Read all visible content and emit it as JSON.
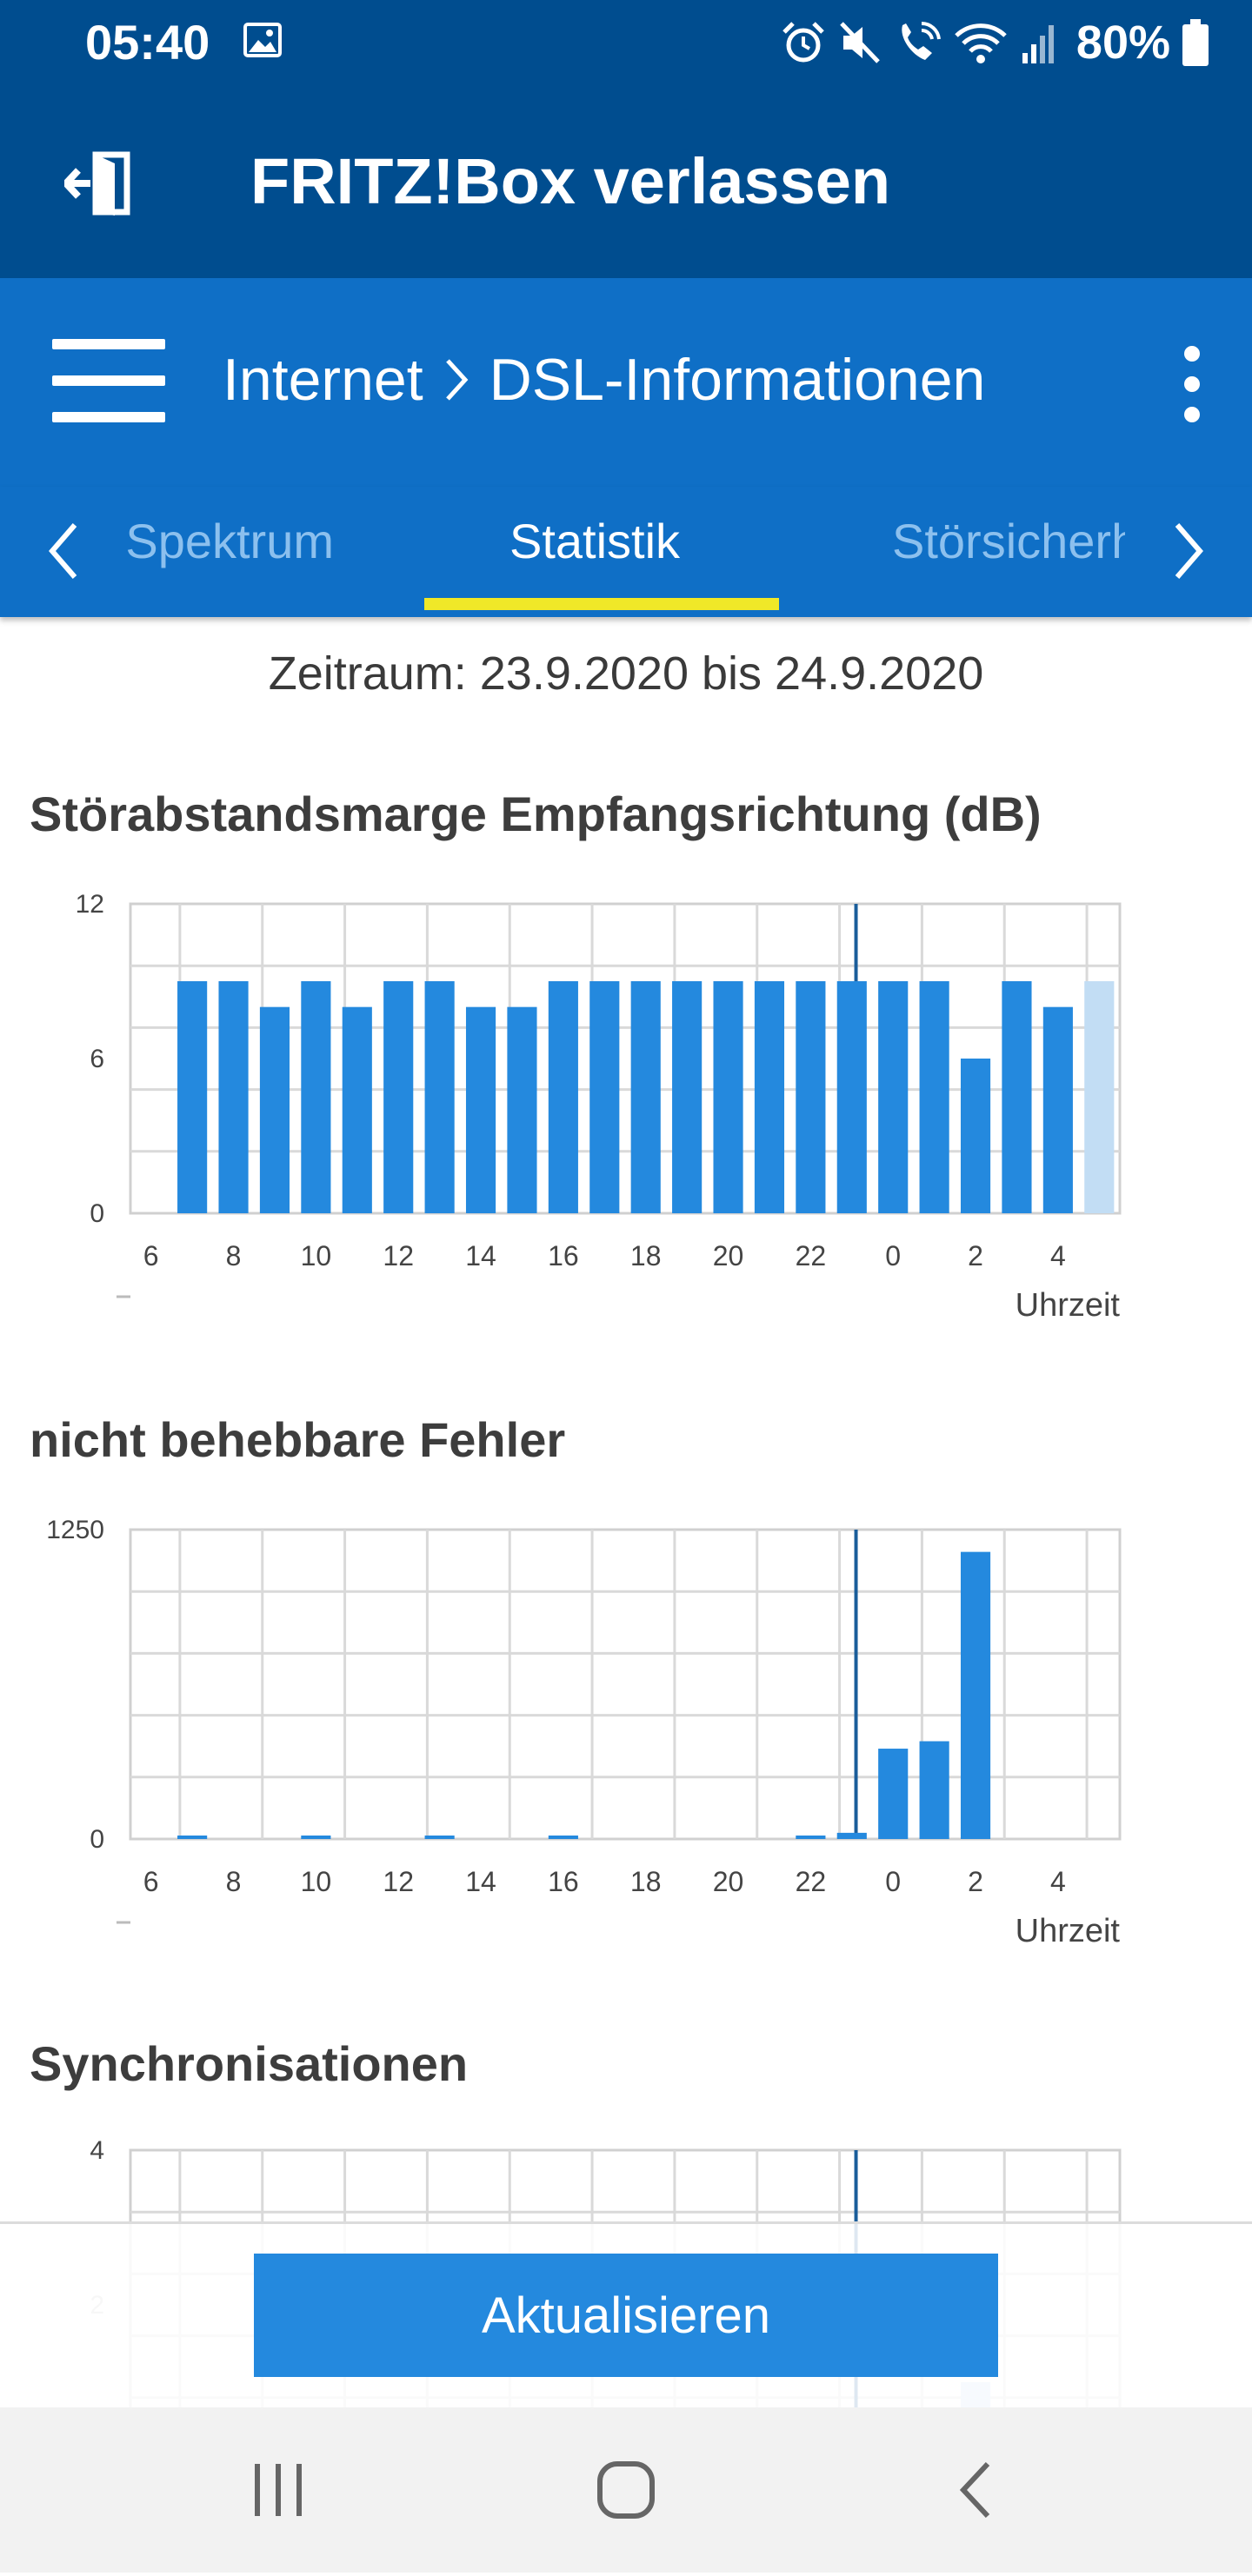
{
  "statusbar": {
    "time": "05:40",
    "battery": "80%"
  },
  "header": {
    "title": "FRITZ!Box verlassen"
  },
  "navbar": {
    "crumb_parent": "Internet",
    "crumb_current": "DSL-Informationen"
  },
  "tabs": {
    "prev": "Spektrum",
    "active": "Statistik",
    "next": "Störsicherheit"
  },
  "period": "Zeitraum: 23.9.2020 bis 24.9.2020",
  "sections": {
    "snr_title": "Störabstandsmarge Empfangsrichtung (dB)",
    "errors_title": "nicht behebbare Fehler",
    "sync_title": "Synchronisationen"
  },
  "button": {
    "refresh": "Aktualisieren"
  },
  "colors": {
    "primary": "#004d8f",
    "accent": "#0f6fc6",
    "bar": "#2489de",
    "bar_current": "#c2ddf4",
    "tab_indicator": "#f0e828"
  },
  "chart_data": [
    {
      "type": "bar",
      "title": "Störabstandsmarge Empfangsrichtung (dB)",
      "xlabel": "Uhrzeit",
      "ylabel": "",
      "ylim": [
        0,
        12
      ],
      "y_ticks": [
        "0",
        "6",
        "12"
      ],
      "x_ticks": [
        "6",
        "8",
        "10",
        "12",
        "14",
        "16",
        "18",
        "20",
        "22",
        "0",
        "2",
        "4"
      ],
      "categories": [
        "7",
        "8",
        "9",
        "10",
        "11",
        "12",
        "13",
        "14",
        "15",
        "16",
        "17",
        "18",
        "19",
        "20",
        "21",
        "22",
        "23",
        "0",
        "1",
        "2",
        "3",
        "4",
        "5"
      ],
      "values": [
        9,
        9,
        8,
        9,
        8,
        9,
        9,
        8,
        8,
        9,
        9,
        9,
        9,
        9,
        9,
        9,
        9,
        9,
        9,
        6,
        9,
        8,
        9
      ],
      "grid": true
    },
    {
      "type": "bar",
      "title": "nicht behebbare Fehler",
      "xlabel": "Uhrzeit",
      "ylabel": "",
      "ylim": [
        0,
        1250
      ],
      "y_ticks": [
        "0",
        "1250"
      ],
      "x_ticks": [
        "6",
        "8",
        "10",
        "12",
        "14",
        "16",
        "18",
        "20",
        "22",
        "0",
        "2",
        "4"
      ],
      "categories": [
        "7",
        "8",
        "9",
        "10",
        "11",
        "12",
        "13",
        "14",
        "15",
        "16",
        "17",
        "18",
        "19",
        "20",
        "21",
        "22",
        "23",
        "0",
        "1",
        "2",
        "3",
        "4",
        "5"
      ],
      "values": [
        8,
        0,
        0,
        8,
        0,
        0,
        10,
        0,
        0,
        8,
        0,
        0,
        0,
        0,
        0,
        8,
        25,
        365,
        395,
        1160,
        0,
        0,
        0
      ],
      "grid": true
    },
    {
      "type": "bar",
      "title": "Synchronisationen",
      "xlabel": "",
      "ylabel": "",
      "ylim": [
        0,
        4
      ],
      "y_ticks": [
        "2",
        "4"
      ],
      "x_ticks": [],
      "categories": [
        "7",
        "8",
        "9",
        "10",
        "11",
        "12",
        "13",
        "14",
        "15",
        "16",
        "17",
        "18",
        "19",
        "20",
        "21",
        "22",
        "23",
        "0",
        "1",
        "2",
        "3",
        "4",
        "5"
      ],
      "values": [
        0,
        0,
        0,
        0,
        0,
        0,
        0,
        0,
        0,
        0,
        0,
        0,
        0,
        0,
        0,
        0,
        0,
        0,
        0,
        1,
        0,
        0,
        0
      ],
      "grid": true
    }
  ]
}
